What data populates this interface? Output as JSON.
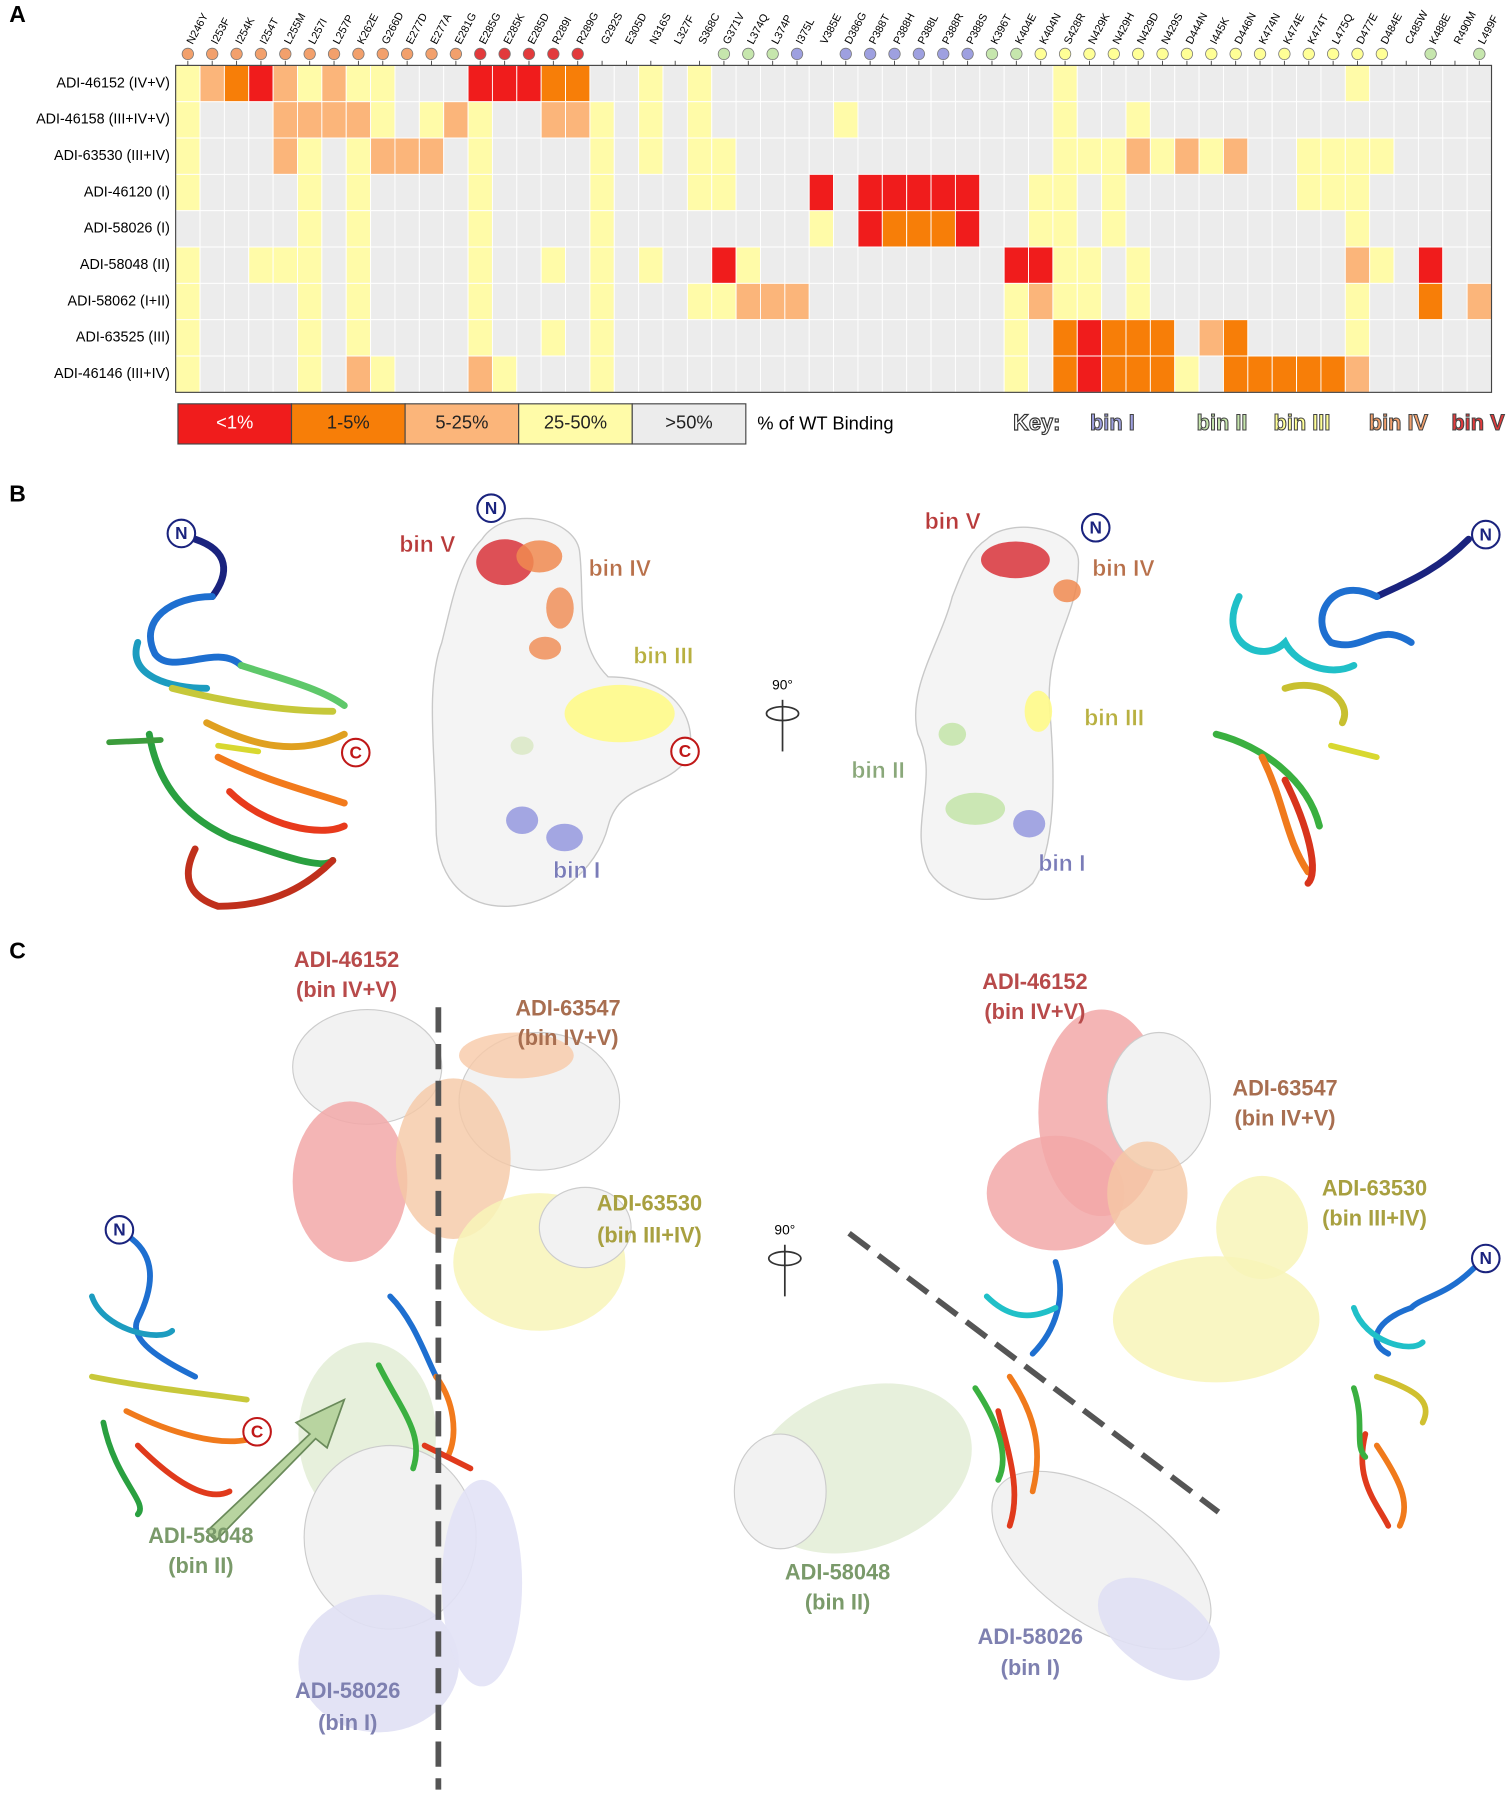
{
  "chart_data": {
    "type": "heatmap",
    "panel_label": "A",
    "columns": [
      "N246Y",
      "I253F",
      "I254K",
      "I254T",
      "L255M",
      "L257I",
      "L257P",
      "K262E",
      "G266D",
      "E277D",
      "E277A",
      "E281G",
      "E285G",
      "E285K",
      "E285D",
      "R289I",
      "R289G",
      "G292S",
      "E305D",
      "N316S",
      "L327F",
      "S368C",
      "G371V",
      "L374Q",
      "L374P",
      "I375L",
      "V385E",
      "D386G",
      "P388T",
      "P388H",
      "P388L",
      "P388R",
      "P388S",
      "K396T",
      "K404E",
      "K404N",
      "S428R",
      "N429K",
      "N429H",
      "N429D",
      "N429S",
      "D444N",
      "I445K",
      "D446N",
      "K474N",
      "K474E",
      "K474T",
      "L475Q",
      "D477E",
      "D484E",
      "C485W",
      "K488E",
      "R490M",
      "L499F"
    ],
    "column_bins": [
      3,
      3,
      3,
      3,
      3,
      3,
      3,
      3,
      3,
      3,
      3,
      3,
      4,
      4,
      4,
      4,
      4,
      null,
      null,
      null,
      null,
      null,
      1,
      1,
      1,
      0,
      null,
      0,
      0,
      0,
      0,
      0,
      0,
      1,
      1,
      2,
      2,
      2,
      2,
      2,
      2,
      2,
      2,
      2,
      2,
      2,
      2,
      2,
      2,
      2,
      null,
      1,
      null,
      1
    ],
    "rows": [
      "ADI-46152 (IV+V)",
      "ADI-46158 (III+IV+V)",
      "ADI-63530 (III+IV)",
      "ADI-46120 (I)",
      "ADI-58026 (I)",
      "ADI-58048 (II)",
      "ADI-58062 (I+II)",
      "ADI-63525 (III)",
      "ADI-46146 (III+IV)"
    ],
    "values": [
      [
        3,
        2,
        1,
        0,
        2,
        3,
        2,
        3,
        3,
        4,
        4,
        4,
        0,
        0,
        0,
        1,
        1,
        4,
        4,
        3,
        4,
        3,
        4,
        4,
        4,
        4,
        4,
        4,
        4,
        4,
        4,
        4,
        4,
        4,
        4,
        4,
        3,
        4,
        4,
        4,
        4,
        4,
        4,
        4,
        4,
        4,
        4,
        4,
        3,
        4,
        4,
        4,
        4,
        4
      ],
      [
        3,
        4,
        4,
        4,
        2,
        2,
        2,
        2,
        3,
        4,
        3,
        2,
        3,
        4,
        4,
        2,
        2,
        3,
        4,
        3,
        4,
        3,
        4,
        4,
        4,
        4,
        4,
        3,
        4,
        4,
        4,
        4,
        4,
        4,
        4,
        4,
        3,
        4,
        4,
        3,
        4,
        4,
        4,
        4,
        4,
        4,
        4,
        4,
        4,
        4,
        4,
        4,
        4,
        4
      ],
      [
        3,
        4,
        4,
        4,
        2,
        3,
        4,
        3,
        2,
        2,
        2,
        4,
        3,
        4,
        4,
        4,
        4,
        3,
        4,
        3,
        4,
        3,
        3,
        4,
        4,
        4,
        4,
        4,
        4,
        4,
        4,
        4,
        4,
        4,
        4,
        4,
        3,
        3,
        3,
        2,
        3,
        2,
        3,
        2,
        4,
        4,
        3,
        3,
        3,
        3,
        4,
        4,
        4,
        4
      ],
      [
        3,
        4,
        4,
        4,
        4,
        3,
        4,
        3,
        4,
        4,
        4,
        4,
        3,
        4,
        4,
        4,
        4,
        3,
        4,
        4,
        4,
        3,
        3,
        4,
        4,
        4,
        0,
        4,
        0,
        0,
        0,
        0,
        0,
        4,
        4,
        3,
        3,
        4,
        3,
        4,
        4,
        4,
        4,
        4,
        4,
        4,
        3,
        3,
        3,
        4,
        4,
        4,
        4,
        4
      ],
      [
        4,
        4,
        4,
        4,
        4,
        3,
        4,
        3,
        4,
        4,
        4,
        4,
        3,
        4,
        4,
        4,
        4,
        3,
        4,
        4,
        4,
        4,
        4,
        4,
        4,
        4,
        3,
        4,
        0,
        1,
        1,
        1,
        0,
        4,
        4,
        3,
        3,
        4,
        3,
        4,
        4,
        4,
        4,
        4,
        4,
        4,
        4,
        4,
        3,
        4,
        4,
        4,
        4,
        4
      ],
      [
        3,
        4,
        4,
        3,
        3,
        3,
        4,
        3,
        4,
        4,
        4,
        4,
        3,
        4,
        4,
        3,
        4,
        3,
        4,
        3,
        4,
        4,
        0,
        3,
        4,
        4,
        4,
        4,
        4,
        4,
        4,
        4,
        4,
        4,
        0,
        0,
        3,
        3,
        4,
        3,
        4,
        4,
        4,
        4,
        4,
        4,
        4,
        4,
        2,
        3,
        4,
        0,
        4,
        4
      ],
      [
        3,
        4,
        4,
        4,
        4,
        3,
        4,
        3,
        4,
        4,
        4,
        4,
        3,
        4,
        4,
        4,
        4,
        3,
        4,
        4,
        4,
        3,
        3,
        2,
        2,
        2,
        4,
        4,
        4,
        4,
        4,
        4,
        4,
        4,
        3,
        2,
        3,
        3,
        4,
        3,
        4,
        4,
        4,
        4,
        4,
        4,
        4,
        4,
        3,
        4,
        4,
        1,
        4,
        2
      ],
      [
        3,
        4,
        4,
        4,
        4,
        3,
        4,
        3,
        4,
        4,
        4,
        4,
        3,
        4,
        4,
        3,
        4,
        3,
        4,
        4,
        4,
        4,
        4,
        4,
        4,
        4,
        4,
        4,
        4,
        4,
        4,
        4,
        4,
        4,
        3,
        4,
        1,
        0,
        1,
        1,
        1,
        4,
        2,
        1,
        4,
        4,
        4,
        4,
        3,
        4,
        4,
        4,
        4,
        4
      ],
      [
        3,
        4,
        4,
        4,
        4,
        3,
        4,
        2,
        3,
        4,
        4,
        4,
        2,
        3,
        4,
        4,
        4,
        3,
        4,
        4,
        4,
        4,
        4,
        4,
        4,
        4,
        4,
        4,
        4,
        4,
        4,
        4,
        4,
        4,
        3,
        4,
        1,
        0,
        1,
        1,
        1,
        3,
        4,
        1,
        1,
        1,
        1,
        1,
        2,
        4,
        4,
        4,
        4,
        4
      ]
    ],
    "legend": {
      "categories": [
        "<1%",
        "1-5%",
        "5-25%",
        "25-50%",
        ">50%"
      ],
      "colors": [
        "#f01c1c",
        "#f77e08",
        "#fbb57a",
        "#fffba8",
        "#ececec"
      ],
      "title": "% of WT Binding"
    },
    "key": {
      "title": "Key:",
      "bins": [
        {
          "name": "bin I",
          "color": "#9ea0e0"
        },
        {
          "name": "bin II",
          "color": "#c6e6ad"
        },
        {
          "name": "bin III",
          "color": "#ffff96"
        },
        {
          "name": "bin IV",
          "color": "#f2a06c"
        },
        {
          "name": "bin V",
          "color": "#e23a3c"
        }
      ]
    }
  },
  "panel_b": {
    "label": "B",
    "n_terminus": "N",
    "c_terminus": "C",
    "rotation": "90°",
    "left_bins": [
      "bin V",
      "bin IV",
      "bin III",
      "bin I"
    ],
    "right_bins": [
      "bin V",
      "bin IV",
      "bin III",
      "bin II",
      "bin I"
    ]
  },
  "panel_c": {
    "label": "C",
    "n_terminus": "N",
    "c_terminus": "C",
    "rotation": "90°",
    "left_antibodies": [
      {
        "name": "ADI-46152",
        "bins": "(bin IV+V)"
      },
      {
        "name": "ADI-63547",
        "bins": "(bin IV+V)"
      },
      {
        "name": "ADI-63530",
        "bins": "(bin III+IV)"
      },
      {
        "name": "ADI-58048",
        "bins": "(bin II)"
      },
      {
        "name": "ADI-58026",
        "bins": "(bin I)"
      }
    ],
    "right_antibodies": [
      {
        "name": "ADI-46152",
        "bins": "(bin IV+V)"
      },
      {
        "name": "ADI-63547",
        "bins": "(bin IV+V)"
      },
      {
        "name": "ADI-63530",
        "bins": "(bin III+IV)"
      },
      {
        "name": "ADI-58048",
        "bins": "(bin II)"
      },
      {
        "name": "ADI-58026",
        "bins": "(bin I)"
      }
    ]
  }
}
